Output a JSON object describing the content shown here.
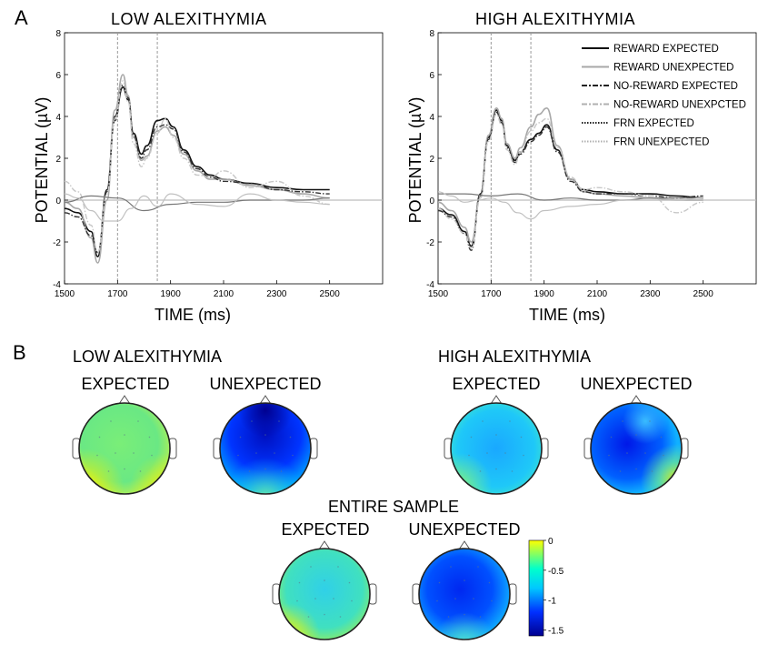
{
  "panel_labels": {
    "a": "A",
    "b": "B"
  },
  "chart_data": [
    {
      "type": "line",
      "title": "LOW ALEXITHYMIA",
      "xlabel": "TIME (ms)",
      "ylabel": "POTENTIAL (µV)",
      "xlim": [
        1500,
        2700
      ],
      "ylim": [
        -4,
        8
      ],
      "xticks": [
        "1500",
        "1700",
        "1900",
        "2100",
        "2300",
        "2500"
      ],
      "yticks": [
        "-4",
        "-2",
        "0",
        "2",
        "4",
        "6",
        "8"
      ],
      "vlines": [
        1700,
        1850
      ],
      "grid": false,
      "legend": "none",
      "series": [
        {
          "style": "reward-expected",
          "x": [
            1500,
            1550,
            1600,
            1625,
            1660,
            1690,
            1720,
            1740,
            1760,
            1790,
            1810,
            1850,
            1880,
            1910,
            1950,
            2000,
            2050,
            2100,
            2200,
            2300,
            2400,
            2500
          ],
          "y": [
            -0.4,
            -0.6,
            -1.5,
            -2.7,
            0.5,
            4.0,
            5.4,
            4.8,
            3.2,
            2.2,
            2.6,
            3.8,
            3.9,
            3.5,
            2.4,
            1.6,
            1.2,
            1.0,
            0.8,
            0.6,
            0.5,
            0.5
          ]
        },
        {
          "style": "reward-unexpected",
          "x": [
            1500,
            1550,
            1600,
            1625,
            1660,
            1690,
            1720,
            1740,
            1760,
            1790,
            1810,
            1850,
            1880,
            1910,
            1950,
            2000,
            2050,
            2100,
            2200,
            2300,
            2400,
            2500
          ],
          "y": [
            -0.1,
            -0.4,
            -1.8,
            -3.0,
            0.0,
            4.3,
            6.0,
            5.0,
            3.0,
            1.9,
            2.1,
            3.3,
            3.5,
            3.1,
            2.2,
            1.4,
            1.0,
            1.0,
            0.7,
            0.5,
            0.3,
            0.1
          ]
        },
        {
          "style": "no-reward-expected",
          "x": [
            1500,
            1550,
            1600,
            1625,
            1660,
            1690,
            1720,
            1740,
            1760,
            1790,
            1810,
            1850,
            1880,
            1910,
            1950,
            2000,
            2050,
            2100,
            2200,
            2300,
            2400,
            2500
          ],
          "y": [
            -0.6,
            -0.8,
            -1.7,
            -2.5,
            0.4,
            3.8,
            5.5,
            4.9,
            3.1,
            2.0,
            2.4,
            3.5,
            3.6,
            3.4,
            2.3,
            1.5,
            1.1,
            0.9,
            0.8,
            0.5,
            0.4,
            0.3
          ]
        },
        {
          "style": "no-reward-unexpected",
          "x": [
            1500,
            1550,
            1600,
            1625,
            1660,
            1690,
            1720,
            1740,
            1760,
            1790,
            1810,
            1850,
            1880,
            1910,
            1950,
            2000,
            2050,
            2100,
            2200,
            2300,
            2400,
            2500
          ],
          "y": [
            0.9,
            0.4,
            -1.2,
            -2.5,
            0.3,
            3.9,
            5.7,
            4.7,
            2.7,
            1.6,
            2.0,
            3.2,
            3.9,
            3.0,
            2.0,
            1.2,
            1.1,
            1.4,
            0.6,
            0.9,
            0.2,
            -0.2
          ]
        },
        {
          "style": "frn-expected",
          "x": [
            1500,
            1600,
            1700,
            1800,
            1900,
            2000,
            2100,
            2200,
            2300,
            2400,
            2500
          ],
          "y": [
            -0.1,
            0.2,
            0.1,
            -0.5,
            -0.2,
            -0.1,
            -0.1,
            0.0,
            0.0,
            0.0,
            0.1
          ]
        },
        {
          "style": "frn-unexpected",
          "x": [
            1500,
            1550,
            1600,
            1650,
            1700,
            1750,
            1800,
            1850,
            1900,
            2000,
            2100,
            2200,
            2300,
            2400,
            2500
          ],
          "y": [
            0.3,
            0.1,
            -0.5,
            -1.0,
            -1.0,
            -0.4,
            0.2,
            -0.3,
            0.3,
            -0.2,
            -0.3,
            0.3,
            0.0,
            -0.1,
            -0.2
          ]
        }
      ]
    },
    {
      "type": "line",
      "title": "HIGH ALEXITHYMIA",
      "xlabel": "TIME (ms)",
      "ylabel": "POTENTIAL (µV)",
      "xlim": [
        1500,
        2700
      ],
      "ylim": [
        -4,
        8
      ],
      "xticks": [
        "1500",
        "1700",
        "1900",
        "2100",
        "2300",
        "2500"
      ],
      "yticks": [
        "-4",
        "-2",
        "0",
        "2",
        "4",
        "6",
        "8"
      ],
      "vlines": [
        1700,
        1850
      ],
      "grid": false,
      "legend": "top-right",
      "series": [
        {
          "name": "REWARD EXPECTED",
          "style": "reward-expected",
          "x": [
            1500,
            1550,
            1600,
            1625,
            1660,
            1690,
            1720,
            1740,
            1760,
            1790,
            1810,
            1850,
            1880,
            1910,
            1950,
            2000,
            2050,
            2100,
            2200,
            2300,
            2400,
            2500
          ],
          "y": [
            -0.4,
            -0.7,
            -1.5,
            -2.2,
            0.3,
            3.0,
            4.3,
            3.8,
            2.6,
            1.9,
            2.3,
            2.9,
            3.2,
            3.6,
            2.4,
            1.0,
            0.5,
            0.4,
            0.3,
            0.3,
            0.2,
            0.1
          ]
        },
        {
          "name": "REWARD UNEXPECTED",
          "style": "reward-unexpected",
          "x": [
            1500,
            1550,
            1600,
            1625,
            1660,
            1690,
            1720,
            1740,
            1760,
            1790,
            1810,
            1850,
            1880,
            1910,
            1950,
            2000,
            2050,
            2100,
            2200,
            2300,
            2400,
            2500
          ],
          "y": [
            -0.1,
            -0.5,
            -1.3,
            -2.0,
            0.2,
            3.1,
            4.4,
            3.9,
            2.7,
            2.0,
            2.5,
            3.5,
            4.1,
            4.4,
            2.6,
            1.0,
            0.4,
            0.3,
            0.2,
            0.1,
            0.0,
            0.0
          ]
        },
        {
          "name": "NO-REWARD EXPECTED",
          "style": "no-reward-expected",
          "x": [
            1500,
            1550,
            1600,
            1625,
            1660,
            1690,
            1720,
            1740,
            1760,
            1790,
            1810,
            1850,
            1880,
            1910,
            1950,
            2000,
            2050,
            2100,
            2200,
            2300,
            2400,
            2500
          ],
          "y": [
            -0.5,
            -0.8,
            -1.6,
            -2.4,
            0.2,
            2.9,
            4.2,
            3.7,
            2.5,
            1.8,
            2.2,
            2.8,
            3.1,
            3.5,
            2.3,
            0.9,
            0.4,
            0.3,
            0.3,
            0.2,
            0.1,
            0.2
          ]
        },
        {
          "name": "NO-REWARD UNEXPCTED",
          "style": "no-reward-unexpected",
          "x": [
            1500,
            1550,
            1600,
            1625,
            1660,
            1690,
            1720,
            1740,
            1760,
            1790,
            1810,
            1850,
            1880,
            1910,
            1950,
            2000,
            2050,
            2100,
            2200,
            2300,
            2400,
            2500
          ],
          "y": [
            -0.4,
            -0.9,
            -1.6,
            -2.3,
            0.1,
            2.8,
            4.1,
            3.6,
            2.4,
            1.7,
            2.3,
            3.3,
            3.7,
            3.9,
            2.5,
            1.1,
            0.5,
            0.6,
            0.4,
            0.2,
            -0.6,
            -0.1
          ]
        },
        {
          "name": "FRN EXPECTED",
          "style": "frn-expected",
          "x": [
            1500,
            1600,
            1700,
            1800,
            1900,
            2000,
            2100,
            2200,
            2300,
            2400,
            2500
          ],
          "y": [
            0.3,
            0.3,
            0.2,
            0.3,
            0.0,
            0.1,
            0.0,
            0.0,
            0.1,
            0.1,
            0.1
          ]
        },
        {
          "name": "FRN UNEXPECTED",
          "style": "frn-unexpected",
          "x": [
            1500,
            1550,
            1600,
            1650,
            1700,
            1750,
            1800,
            1850,
            1900,
            2000,
            2100,
            2200,
            2300,
            2400,
            2500
          ],
          "y": [
            0.4,
            0.2,
            -0.1,
            0.0,
            0.1,
            -0.1,
            -0.6,
            -0.9,
            -0.5,
            -0.3,
            -0.2,
            0.0,
            0.0,
            0.0,
            0.1
          ]
        }
      ]
    },
    {
      "type": "heatmap",
      "colorbar": {
        "range": [
          -1.6,
          0
        ],
        "ticks": [
          "0",
          "-0.5",
          "-1",
          "-1.5"
        ],
        "colors": [
          "#ffff00",
          "#00ffff",
          "#0000ff",
          "#00008f"
        ]
      }
    }
  ],
  "maps": {
    "low_title": "LOW ALEXITHYMIA",
    "high_title": "HIGH ALEXITHYMIA",
    "entire_title": "ENTIRE SAMPLE",
    "expected": "EXPECTED",
    "unexpected": "UNEXPECTED",
    "heads": [
      {
        "id": "low-expected",
        "level": -0.55
      },
      {
        "id": "low-unexpected",
        "level": -1.45
      },
      {
        "id": "high-expected",
        "level": -0.85
      },
      {
        "id": "high-unexpected",
        "level": -1.1
      },
      {
        "id": "entire-expected",
        "level": -0.7
      },
      {
        "id": "entire-unexpected",
        "level": -1.3
      }
    ]
  }
}
